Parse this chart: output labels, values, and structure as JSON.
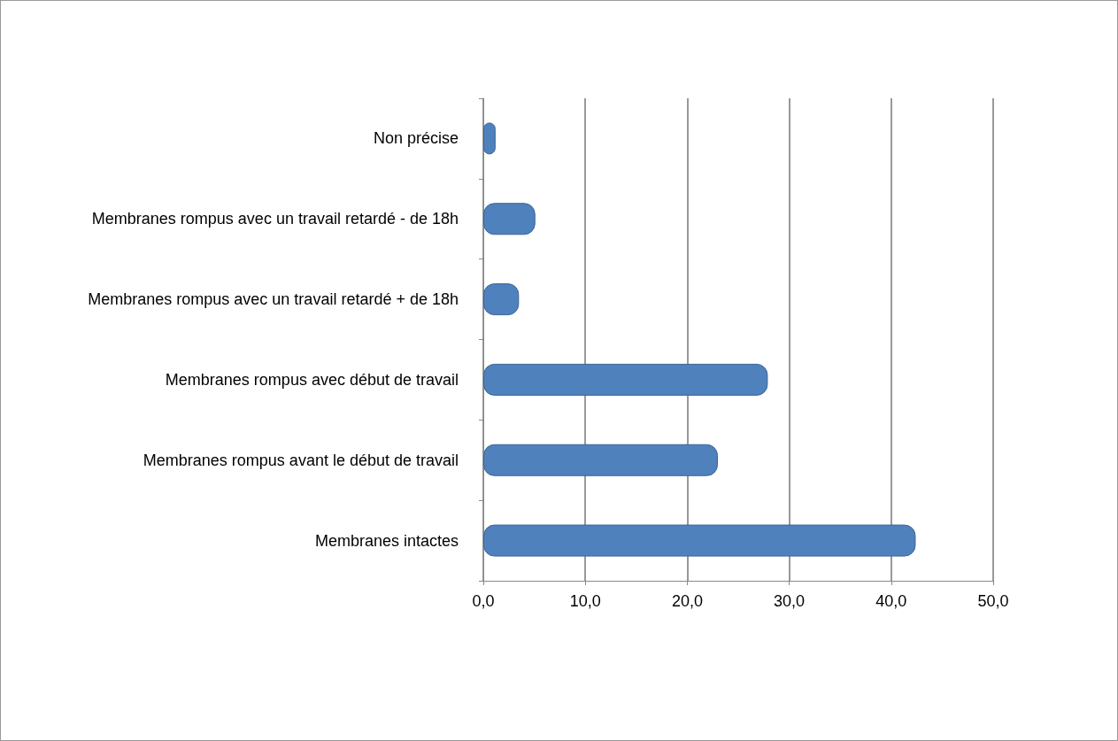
{
  "chart_data": {
    "type": "bar",
    "orientation": "horizontal",
    "categories": [
      "Non précise",
      "Membranes rompus avec un travail retardé - de 18h",
      "Membranes rompus avec un travail retardé + de 18h",
      "Membranes rompus avec début de travail",
      "Membranes rompus avant le début de travail",
      "Membranes intactes"
    ],
    "values": [
      1.2,
      5.1,
      3.5,
      27.9,
      23.0,
      42.4
    ],
    "color": "#4f81bd",
    "xlim": [
      0,
      50
    ],
    "xticks": [
      {
        "value": 0,
        "label": "0,0"
      },
      {
        "value": 10,
        "label": "10,0"
      },
      {
        "value": 20,
        "label": "20,0"
      },
      {
        "value": 30,
        "label": "30,0"
      },
      {
        "value": 40,
        "label": "40,0"
      },
      {
        "value": 50,
        "label": "50,0"
      }
    ],
    "grid": "x"
  }
}
